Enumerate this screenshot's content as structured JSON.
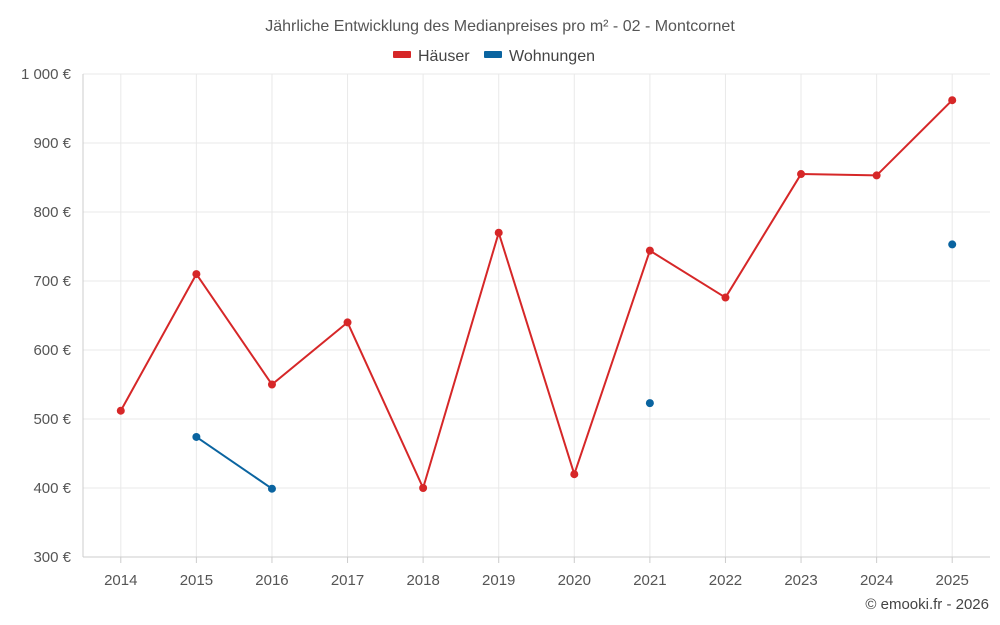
{
  "chart_data": {
    "type": "line",
    "title": "Jährliche Entwicklung des Medianpreises pro m² - 02 - Montcornet",
    "categories": [
      "2014",
      "2015",
      "2016",
      "2017",
      "2018",
      "2019",
      "2020",
      "2021",
      "2022",
      "2023",
      "2024",
      "2025"
    ],
    "y_ticks": [
      300,
      400,
      500,
      600,
      700,
      800,
      900,
      1000
    ],
    "y_tick_labels": [
      "300 €",
      "400 €",
      "500 €",
      "600 €",
      "700 €",
      "800 €",
      "900 €",
      "1 000 €"
    ],
    "ylim": [
      300,
      1000
    ],
    "grid": true,
    "legend_position": "top-center",
    "series": [
      {
        "name": "Häuser",
        "color": "#d62728",
        "values": [
          512,
          710,
          550,
          640,
          400,
          770,
          420,
          744,
          676,
          855,
          853,
          962
        ]
      },
      {
        "name": "Wohnungen",
        "color": "#0a64a0",
        "values": [
          null,
          474,
          399,
          null,
          null,
          null,
          null,
          523,
          null,
          null,
          null,
          753
        ]
      }
    ],
    "credit": "© emooki.fr - 2026"
  }
}
